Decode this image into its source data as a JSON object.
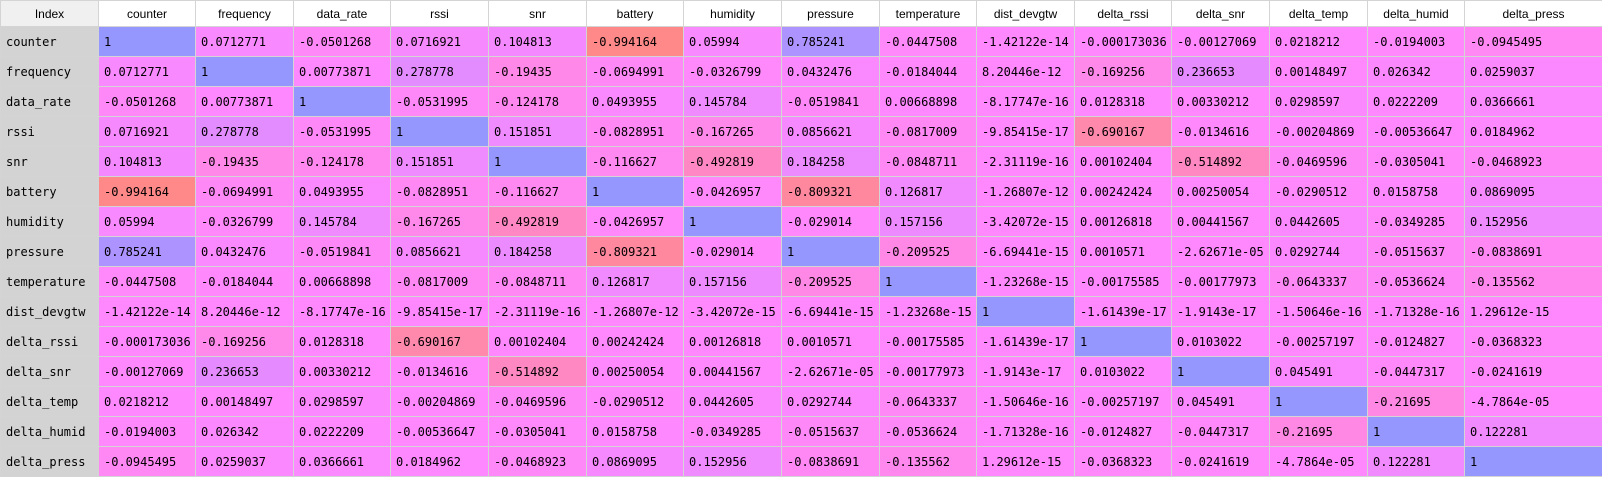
{
  "table": {
    "index_label": "Index",
    "columns": [
      "counter",
      "frequency",
      "data_rate",
      "rssi",
      "snr",
      "battery",
      "humidity",
      "pressure",
      "temperature",
      "dist_devgtw",
      "delta_rssi",
      "delta_snr",
      "delta_temp",
      "delta_humid",
      "delta_press"
    ],
    "rows": [
      {
        "label": "counter",
        "values": [
          "1",
          "0.0712771",
          "-0.0501268",
          "0.0716921",
          "0.104813",
          "-0.994164",
          "0.05994",
          "0.785241",
          "-0.0447508",
          "-1.42122e-14",
          "-0.000173036",
          "-0.00127069",
          "0.0218212",
          "-0.0194003",
          "-0.0945495"
        ]
      },
      {
        "label": "frequency",
        "values": [
          "0.0712771",
          "1",
          "0.00773871",
          "0.278778",
          "-0.19435",
          "-0.0694991",
          "-0.0326799",
          "0.0432476",
          "-0.0184044",
          "8.20446e-12",
          "-0.169256",
          "0.236653",
          "0.00148497",
          "0.026342",
          "0.0259037"
        ]
      },
      {
        "label": "data_rate",
        "values": [
          "-0.0501268",
          "0.00773871",
          "1",
          "-0.0531995",
          "-0.124178",
          "0.0493955",
          "0.145784",
          "-0.0519841",
          "0.00668898",
          "-8.17747e-16",
          "0.0128318",
          "0.00330212",
          "0.0298597",
          "0.0222209",
          "0.0366661"
        ]
      },
      {
        "label": "rssi",
        "values": [
          "0.0716921",
          "0.278778",
          "-0.0531995",
          "1",
          "0.151851",
          "-0.0828951",
          "-0.167265",
          "0.0856621",
          "-0.0817009",
          "-9.85415e-17",
          "-0.690167",
          "-0.0134616",
          "-0.00204869",
          "-0.00536647",
          "0.0184962"
        ]
      },
      {
        "label": "snr",
        "values": [
          "0.104813",
          "-0.19435",
          "-0.124178",
          "0.151851",
          "1",
          "-0.116627",
          "-0.492819",
          "0.184258",
          "-0.0848711",
          "-2.31119e-16",
          "0.00102404",
          "-0.514892",
          "-0.0469596",
          "-0.0305041",
          "-0.0468923"
        ]
      },
      {
        "label": "battery",
        "values": [
          "-0.994164",
          "-0.0694991",
          "0.0493955",
          "-0.0828951",
          "-0.116627",
          "1",
          "-0.0426957",
          "-0.809321",
          "0.126817",
          "-1.26807e-12",
          "0.00242424",
          "0.00250054",
          "-0.0290512",
          "0.0158758",
          "0.0869095"
        ]
      },
      {
        "label": "humidity",
        "values": [
          "0.05994",
          "-0.0326799",
          "0.145784",
          "-0.167265",
          "-0.492819",
          "-0.0426957",
          "1",
          "-0.029014",
          "0.157156",
          "-3.42072e-15",
          "0.00126818",
          "0.00441567",
          "0.0442605",
          "-0.0349285",
          "0.152956"
        ]
      },
      {
        "label": "pressure",
        "values": [
          "0.785241",
          "0.0432476",
          "-0.0519841",
          "0.0856621",
          "0.184258",
          "-0.809321",
          "-0.029014",
          "1",
          "-0.209525",
          "-6.69441e-15",
          "0.0010571",
          "-2.62671e-05",
          "0.0292744",
          "-0.0515637",
          "-0.0838691"
        ]
      },
      {
        "label": "temperature",
        "values": [
          "-0.0447508",
          "-0.0184044",
          "0.00668898",
          "-0.0817009",
          "-0.0848711",
          "0.126817",
          "0.157156",
          "-0.209525",
          "1",
          "-1.23268e-15",
          "-0.00175585",
          "-0.00177973",
          "-0.0643337",
          "-0.0536624",
          "-0.135562"
        ]
      },
      {
        "label": "dist_devgtw",
        "values": [
          "-1.42122e-14",
          "8.20446e-12",
          "-8.17747e-16",
          "-9.85415e-17",
          "-2.31119e-16",
          "-1.26807e-12",
          "-3.42072e-15",
          "-6.69441e-15",
          "-1.23268e-15",
          "1",
          "-1.61439e-17",
          "-1.9143e-17",
          "-1.50646e-16",
          "-1.71328e-16",
          "1.29612e-15"
        ]
      },
      {
        "label": "delta_rssi",
        "values": [
          "-0.000173036",
          "-0.169256",
          "0.0128318",
          "-0.690167",
          "0.00102404",
          "0.00242424",
          "0.00126818",
          "0.0010571",
          "-0.00175585",
          "-1.61439e-17",
          "1",
          "0.0103022",
          "-0.00257197",
          "-0.0124827",
          "-0.0368323"
        ]
      },
      {
        "label": "delta_snr",
        "values": [
          "-0.00127069",
          "0.236653",
          "0.00330212",
          "-0.0134616",
          "-0.514892",
          "0.00250054",
          "0.00441567",
          "-2.62671e-05",
          "-0.00177973",
          "-1.9143e-17",
          "0.0103022",
          "1",
          "0.045491",
          "-0.0447317",
          "-0.0241619"
        ]
      },
      {
        "label": "delta_temp",
        "values": [
          "0.0218212",
          "0.00148497",
          "0.0298597",
          "-0.00204869",
          "-0.0469596",
          "-0.0290512",
          "0.0442605",
          "0.0292744",
          "-0.0643337",
          "-1.50646e-16",
          "-0.00257197",
          "0.045491",
          "1",
          "-0.21695",
          "-4.7864e-05"
        ]
      },
      {
        "label": "delta_humid",
        "values": [
          "-0.0194003",
          "0.026342",
          "0.0222209",
          "-0.00536647",
          "-0.0305041",
          "0.0158758",
          "-0.0349285",
          "-0.0515637",
          "-0.0536624",
          "-1.71328e-16",
          "-0.0124827",
          "-0.0447317",
          "-0.21695",
          "1",
          "0.122281"
        ]
      },
      {
        "label": "delta_press",
        "values": [
          "-0.0945495",
          "0.0259037",
          "0.0366661",
          "0.0184962",
          "-0.0468923",
          "0.0869095",
          "0.152956",
          "-0.0838691",
          "-0.135562",
          "1.29612e-15",
          "-0.0368323",
          "-0.0241619",
          "-4.7864e-05",
          "0.122281",
          "1"
        ]
      }
    ]
  }
}
